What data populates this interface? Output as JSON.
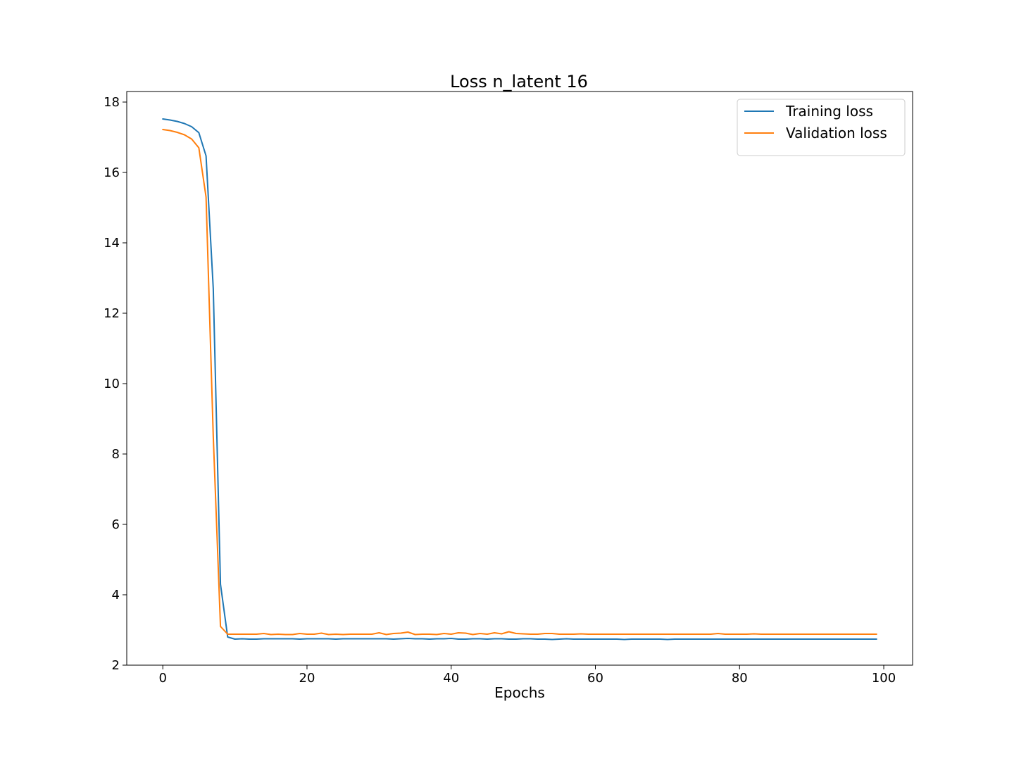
{
  "chart_data": {
    "type": "line",
    "title": "Loss n_latent 16",
    "xlabel": "Epochs",
    "ylabel": "",
    "xlim": [
      -5,
      104
    ],
    "ylim": [
      2,
      18.3
    ],
    "xticks": [
      0,
      20,
      40,
      60,
      80,
      100
    ],
    "yticks": [
      2,
      4,
      6,
      8,
      10,
      12,
      14,
      16,
      18
    ],
    "grid": false,
    "legend_position": "top-right",
    "series": [
      {
        "name": "Training loss",
        "color": "#1f77b4",
        "x": [
          0,
          1,
          2,
          3,
          4,
          5,
          6,
          7,
          8,
          9,
          10,
          11,
          12,
          13,
          14,
          15,
          16,
          17,
          18,
          19,
          20,
          21,
          22,
          23,
          24,
          25,
          26,
          27,
          28,
          29,
          30,
          31,
          32,
          33,
          34,
          35,
          36,
          37,
          38,
          39,
          40,
          41,
          42,
          43,
          44,
          45,
          46,
          47,
          48,
          49,
          50,
          51,
          52,
          53,
          54,
          55,
          56,
          57,
          58,
          59,
          60,
          61,
          62,
          63,
          64,
          65,
          66,
          67,
          68,
          69,
          70,
          71,
          72,
          73,
          74,
          75,
          76,
          77,
          78,
          79,
          80,
          81,
          82,
          83,
          84,
          85,
          86,
          87,
          88,
          89,
          90,
          91,
          92,
          93,
          94,
          95,
          96,
          97,
          98,
          99
        ],
        "values": [
          17.52,
          17.49,
          17.45,
          17.39,
          17.3,
          17.13,
          16.47,
          12.7,
          4.3,
          2.8,
          2.74,
          2.75,
          2.74,
          2.74,
          2.75,
          2.75,
          2.75,
          2.75,
          2.75,
          2.74,
          2.75,
          2.75,
          2.75,
          2.75,
          2.74,
          2.75,
          2.75,
          2.75,
          2.75,
          2.75,
          2.75,
          2.75,
          2.74,
          2.75,
          2.76,
          2.75,
          2.75,
          2.74,
          2.75,
          2.75,
          2.76,
          2.74,
          2.74,
          2.75,
          2.75,
          2.74,
          2.75,
          2.75,
          2.74,
          2.74,
          2.75,
          2.75,
          2.74,
          2.74,
          2.73,
          2.74,
          2.75,
          2.74,
          2.74,
          2.74,
          2.74,
          2.74,
          2.74,
          2.74,
          2.73,
          2.74,
          2.74,
          2.74,
          2.74,
          2.74,
          2.73,
          2.74,
          2.74,
          2.74,
          2.74,
          2.74,
          2.74,
          2.74,
          2.74,
          2.74,
          2.74,
          2.74,
          2.74,
          2.74,
          2.74,
          2.74,
          2.74,
          2.74,
          2.74,
          2.74,
          2.74,
          2.74,
          2.74,
          2.74,
          2.74,
          2.74,
          2.74,
          2.74,
          2.74,
          2.74
        ]
      },
      {
        "name": "Validation loss",
        "color": "#ff7f0e",
        "x": [
          0,
          1,
          2,
          3,
          4,
          5,
          6,
          7,
          8,
          9,
          10,
          11,
          12,
          13,
          14,
          15,
          16,
          17,
          18,
          19,
          20,
          21,
          22,
          23,
          24,
          25,
          26,
          27,
          28,
          29,
          30,
          31,
          32,
          33,
          34,
          35,
          36,
          37,
          38,
          39,
          40,
          41,
          42,
          43,
          44,
          45,
          46,
          47,
          48,
          49,
          50,
          51,
          52,
          53,
          54,
          55,
          56,
          57,
          58,
          59,
          60,
          61,
          62,
          63,
          64,
          65,
          66,
          67,
          68,
          69,
          70,
          71,
          72,
          73,
          74,
          75,
          76,
          77,
          78,
          79,
          80,
          81,
          82,
          83,
          84,
          85,
          86,
          87,
          88,
          89,
          90,
          91,
          92,
          93,
          94,
          95,
          96,
          97,
          98,
          99
        ],
        "values": [
          17.22,
          17.19,
          17.14,
          17.07,
          16.95,
          16.7,
          15.3,
          8.5,
          3.1,
          2.88,
          2.88,
          2.88,
          2.88,
          2.88,
          2.9,
          2.87,
          2.88,
          2.87,
          2.87,
          2.9,
          2.88,
          2.88,
          2.91,
          2.87,
          2.88,
          2.87,
          2.88,
          2.88,
          2.88,
          2.88,
          2.92,
          2.87,
          2.9,
          2.91,
          2.94,
          2.87,
          2.88,
          2.88,
          2.87,
          2.9,
          2.88,
          2.92,
          2.91,
          2.87,
          2.9,
          2.88,
          2.92,
          2.89,
          2.95,
          2.9,
          2.89,
          2.88,
          2.88,
          2.9,
          2.9,
          2.88,
          2.88,
          2.88,
          2.89,
          2.88,
          2.88,
          2.88,
          2.88,
          2.88,
          2.88,
          2.88,
          2.88,
          2.88,
          2.88,
          2.88,
          2.88,
          2.88,
          2.88,
          2.88,
          2.88,
          2.88,
          2.88,
          2.9,
          2.88,
          2.88,
          2.88,
          2.88,
          2.89,
          2.88,
          2.88,
          2.88,
          2.88,
          2.88,
          2.88,
          2.88,
          2.88,
          2.88,
          2.88,
          2.88,
          2.88,
          2.88,
          2.88,
          2.88,
          2.88,
          2.88
        ]
      }
    ]
  }
}
